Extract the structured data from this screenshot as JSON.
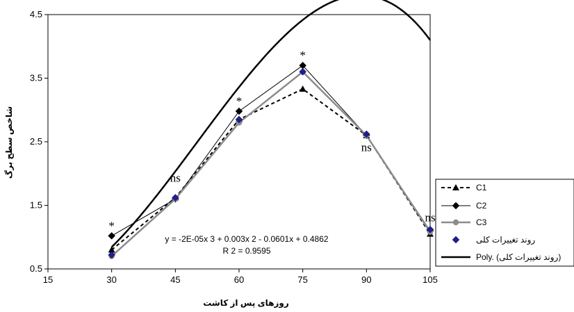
{
  "chart_data": {
    "type": "line",
    "xlabel": "روزهای پس از کاشت",
    "ylabel": "شاخص سطح برگ",
    "xlim": [
      15,
      105
    ],
    "ylim": [
      0.5,
      4.5
    ],
    "x_ticks": [
      15,
      30,
      45,
      60,
      75,
      90,
      105
    ],
    "y_ticks": [
      0.5,
      1.5,
      2.5,
      3.5,
      4.5
    ],
    "x": [
      30,
      45,
      60,
      75,
      90,
      105
    ],
    "series": [
      {
        "name": "C1",
        "values": [
          0.8,
          1.62,
          2.85,
          3.33,
          2.6,
          1.05
        ],
        "color": "#000000",
        "style": "dashed",
        "marker": "triangle"
      },
      {
        "name": "C2",
        "values": [
          1.02,
          1.6,
          2.98,
          3.7,
          2.6,
          1.1
        ],
        "color": "#000000",
        "style": "solid-thin",
        "marker": "diamond"
      },
      {
        "name": "C3",
        "values": [
          0.7,
          1.6,
          2.8,
          3.6,
          2.6,
          1.08
        ],
        "color": "#8c8c8c",
        "style": "solid-thick",
        "marker": "circle"
      },
      {
        "name": "روند تغییرات کلی",
        "values": [
          0.72,
          1.62,
          2.85,
          3.6,
          2.62,
          1.12
        ],
        "color": "#1f1f8f",
        "style": "none",
        "marker": "diamond"
      },
      {
        "name": "Poly. (روند تغییرات کلی)",
        "type": "polynomial",
        "coefficients": [
          -2e-05,
          0.003,
          -0.0601,
          0.4862
        ],
        "color": "#000000",
        "style": "solid-bold"
      }
    ],
    "annotations": [
      {
        "text": "*",
        "x": 30,
        "y": 1.12
      },
      {
        "text": "ns",
        "x": 45,
        "y": 1.87
      },
      {
        "text": "*",
        "x": 60,
        "y": 3.08
      },
      {
        "text": "*",
        "x": 75,
        "y": 3.8
      },
      {
        "text": "ns",
        "x": 90,
        "y": 2.35
      },
      {
        "text": "ns",
        "x": 105,
        "y": 1.25
      }
    ],
    "equation": "y = -2E-05x 3  + 0.003x 2  - 0.0601x + 0.4862",
    "r_squared": "R 2  = 0.9595",
    "grid": false,
    "legend_position": "right"
  }
}
